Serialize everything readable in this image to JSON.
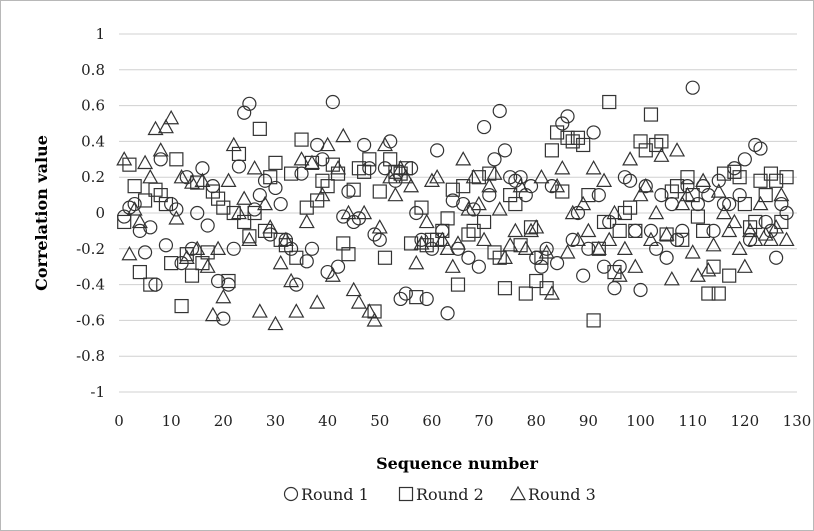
{
  "chart_data": {
    "type": "scatter",
    "xlabel": "Sequence number",
    "ylabel": "Correlation value",
    "xlim": [
      0,
      130
    ],
    "ylim": [
      -1,
      1
    ],
    "x_ticks": [
      0,
      10,
      20,
      30,
      40,
      50,
      60,
      70,
      80,
      90,
      100,
      110,
      120,
      130
    ],
    "y_ticks": [
      1,
      0.8,
      0.6,
      0.4,
      0.2,
      0,
      -0.2,
      -0.4,
      -0.6,
      -0.8,
      -1
    ],
    "y_tick_labels": [
      "1",
      "0.8",
      "0.6",
      "0.4",
      "0.2",
      "0",
      "-0.2",
      "-0.4",
      "-0.6",
      "-0.8",
      "-1"
    ],
    "grid": "horizontal",
    "legend_position": "bottom",
    "series": [
      {
        "name": "Round 1",
        "marker": "circle",
        "x": [
          1,
          2,
          3,
          4,
          5,
          6,
          7,
          8,
          9,
          10,
          11,
          12,
          13,
          14,
          15,
          16,
          17,
          18,
          19,
          20,
          21,
          22,
          23,
          24,
          25,
          26,
          27,
          28,
          29,
          30,
          31,
          32,
          33,
          34,
          35,
          36,
          37,
          38,
          39,
          40,
          41,
          42,
          43,
          44,
          45,
          46,
          47,
          48,
          49,
          50,
          51,
          52,
          53,
          54,
          55,
          56,
          57,
          58,
          59,
          60,
          61,
          62,
          63,
          64,
          65,
          66,
          67,
          68,
          69,
          70,
          71,
          72,
          73,
          74,
          75,
          76,
          77,
          78,
          79,
          80,
          81,
          82,
          83,
          84,
          85,
          86,
          87,
          88,
          89,
          90,
          91,
          92,
          93,
          94,
          95,
          96,
          97,
          98,
          99,
          100,
          101,
          102,
          103,
          104,
          105,
          106,
          107,
          108,
          109,
          110,
          111,
          112,
          113,
          114,
          115,
          116,
          117,
          118,
          119,
          120,
          121,
          122,
          123,
          124,
          125,
          126,
          127,
          128
        ],
        "y": [
          -0.02,
          0.03,
          0.05,
          -0.1,
          -0.22,
          -0.08,
          -0.4,
          0.3,
          -0.18,
          0.05,
          0.02,
          -0.28,
          0.2,
          -0.2,
          0.0,
          0.25,
          -0.07,
          0.15,
          -0.38,
          -0.59,
          -0.4,
          -0.2,
          0.26,
          0.56,
          0.61,
          0.02,
          0.1,
          0.18,
          -0.12,
          0.14,
          0.05,
          -0.15,
          -0.2,
          -0.4,
          0.22,
          -0.27,
          -0.2,
          0.38,
          0.3,
          -0.33,
          0.62,
          -0.3,
          -0.02,
          0.12,
          -0.05,
          -0.03,
          0.38,
          0.25,
          -0.12,
          -0.15,
          0.25,
          0.4,
          0.18,
          -0.48,
          -0.45,
          0.25,
          0.0,
          -0.15,
          -0.48,
          -0.2,
          0.35,
          -0.1,
          -0.56,
          0.07,
          -0.2,
          0.05,
          -0.25,
          0.02,
          -0.3,
          0.48,
          0.1,
          0.3,
          0.57,
          0.35,
          0.2,
          0.18,
          0.2,
          0.1,
          0.15,
          -0.25,
          -0.3,
          -0.2,
          0.15,
          -0.28,
          0.5,
          0.54,
          -0.15,
          0.0,
          -0.35,
          -0.2,
          0.45,
          0.1,
          -0.3,
          -0.05,
          -0.42,
          -0.3,
          0.2,
          0.18,
          -0.1,
          -0.43,
          0.15,
          -0.1,
          -0.2,
          0.1,
          -0.25,
          0.05,
          -0.15,
          -0.1,
          0.15,
          0.7,
          0.05,
          0.15,
          0.1,
          -0.1,
          0.18,
          0.05,
          0.05,
          0.25,
          0.1,
          0.3,
          -0.15,
          0.38,
          0.36,
          -0.05,
          -0.1,
          -0.25,
          0.05,
          0.0
        ],
        "y_note": ""
      },
      {
        "name": "Round 2",
        "marker": "square",
        "x": [
          1,
          2,
          3,
          4,
          5,
          6,
          7,
          8,
          9,
          10,
          11,
          12,
          13,
          14,
          15,
          16,
          17,
          18,
          19,
          20,
          21,
          22,
          23,
          24,
          25,
          26,
          27,
          28,
          29,
          30,
          31,
          32,
          33,
          34,
          35,
          36,
          37,
          38,
          39,
          40,
          41,
          42,
          43,
          44,
          45,
          46,
          47,
          48,
          49,
          50,
          51,
          52,
          53,
          54,
          55,
          56,
          57,
          58,
          59,
          60,
          61,
          62,
          63,
          64,
          65,
          66,
          67,
          68,
          69,
          70,
          71,
          72,
          73,
          74,
          75,
          76,
          77,
          78,
          79,
          80,
          81,
          82,
          83,
          84,
          85,
          86,
          87,
          88,
          89,
          90,
          91,
          92,
          93,
          94,
          95,
          96,
          97,
          98,
          99,
          100,
          101,
          102,
          103,
          104,
          105,
          106,
          107,
          108,
          109,
          110,
          111,
          112,
          113,
          114,
          115,
          116,
          117,
          118,
          119,
          120,
          121,
          122,
          123,
          124,
          125,
          126,
          127,
          128
        ],
        "y": [
          -0.05,
          0.27,
          0.15,
          -0.33,
          0.07,
          -0.4,
          0.13,
          0.1,
          0.05,
          -0.28,
          0.3,
          -0.52,
          -0.23,
          -0.35,
          0.17,
          -0.28,
          -0.22,
          0.12,
          0.08,
          0.03,
          -0.38,
          0.0,
          0.33,
          -0.05,
          -0.13,
          0.0,
          0.47,
          -0.1,
          0.2,
          0.28,
          -0.15,
          -0.18,
          0.22,
          -0.25,
          0.41,
          0.03,
          0.28,
          0.07,
          0.18,
          0.15,
          0.27,
          0.22,
          -0.17,
          -0.23,
          0.13,
          0.25,
          0.23,
          0.3,
          -0.55,
          0.12,
          -0.25,
          0.3,
          0.23,
          0.22,
          0.25,
          -0.17,
          -0.47,
          0.03,
          -0.18,
          -0.15,
          -0.15,
          -0.1,
          -0.03,
          0.13,
          -0.4,
          0.15,
          -0.12,
          -0.1,
          0.2,
          -0.05,
          0.22,
          -0.22,
          -0.25,
          -0.42,
          0.1,
          0.05,
          -0.18,
          -0.45,
          -0.08,
          -0.38,
          -0.25,
          -0.42,
          0.35,
          0.45,
          0.12,
          0.42,
          0.4,
          0.42,
          0.38,
          0.1,
          -0.6,
          -0.2,
          -0.05,
          0.62,
          -0.33,
          -0.1,
          0.0,
          0.03,
          -0.1,
          0.4,
          0.35,
          0.55,
          0.38,
          0.4,
          -0.12,
          0.12,
          0.15,
          -0.15,
          0.2,
          0.1,
          -0.02,
          -0.1,
          -0.45,
          -0.3,
          -0.45,
          0.22,
          -0.35,
          0.23,
          0.2,
          0.05,
          -0.08,
          -0.05,
          0.18,
          0.1,
          0.22,
          0.18,
          -0.05,
          0.2
        ]
      },
      {
        "name": "Round 3",
        "marker": "triangle",
        "x": [
          1,
          2,
          3,
          4,
          5,
          6,
          7,
          8,
          9,
          10,
          11,
          12,
          13,
          14,
          15,
          16,
          17,
          18,
          19,
          20,
          21,
          22,
          23,
          24,
          25,
          26,
          27,
          28,
          29,
          30,
          31,
          32,
          33,
          34,
          35,
          36,
          37,
          38,
          39,
          40,
          41,
          42,
          43,
          44,
          45,
          46,
          47,
          48,
          49,
          50,
          51,
          52,
          53,
          54,
          55,
          56,
          57,
          58,
          59,
          60,
          61,
          62,
          63,
          64,
          65,
          66,
          67,
          68,
          69,
          70,
          71,
          72,
          73,
          74,
          75,
          76,
          77,
          78,
          79,
          80,
          81,
          82,
          83,
          84,
          85,
          86,
          87,
          88,
          89,
          90,
          91,
          92,
          93,
          94,
          95,
          96,
          97,
          98,
          99,
          100,
          101,
          102,
          103,
          104,
          105,
          106,
          107,
          108,
          109,
          110,
          111,
          112,
          113,
          114,
          115,
          116,
          117,
          118,
          119,
          120,
          121,
          122,
          123,
          124,
          125,
          126,
          127,
          128
        ],
        "y": [
          0.3,
          -0.23,
          0.02,
          -0.05,
          0.28,
          0.2,
          0.47,
          0.35,
          0.48,
          0.53,
          -0.03,
          0.2,
          -0.25,
          0.17,
          -0.2,
          0.18,
          -0.3,
          -0.57,
          -0.2,
          -0.47,
          0.18,
          0.38,
          0.0,
          0.08,
          -0.15,
          0.25,
          -0.55,
          0.05,
          -0.08,
          -0.62,
          -0.28,
          -0.15,
          -0.38,
          -0.55,
          0.3,
          -0.05,
          0.28,
          -0.5,
          0.1,
          0.38,
          -0.35,
          0.25,
          0.43,
          0.0,
          -0.43,
          -0.5,
          0.0,
          -0.55,
          -0.6,
          -0.08,
          0.38,
          0.2,
          0.1,
          0.25,
          0.2,
          0.15,
          -0.28,
          -0.17,
          -0.05,
          0.18,
          0.2,
          -0.15,
          -0.2,
          -0.3,
          -0.17,
          0.3,
          0.02,
          0.2,
          0.05,
          -0.15,
          0.15,
          0.22,
          0.02,
          -0.25,
          -0.18,
          -0.1,
          0.15,
          -0.2,
          -0.1,
          -0.08,
          0.2,
          -0.22,
          -0.45,
          0.15,
          0.25,
          -0.22,
          0.0,
          -0.15,
          0.05,
          -0.1,
          0.25,
          -0.2,
          0.18,
          -0.15,
          0.0,
          -0.35,
          -0.2,
          0.3,
          -0.3,
          0.1,
          0.15,
          -0.15,
          0.0,
          0.32,
          -0.12,
          -0.37,
          0.35,
          0.05,
          0.1,
          -0.22,
          -0.35,
          0.18,
          -0.32,
          -0.18,
          0.12,
          0.0,
          -0.1,
          -0.05,
          -0.2,
          -0.3,
          -0.1,
          -0.15,
          0.05,
          -0.12,
          -0.15,
          -0.08,
          0.1,
          -0.15
        ]
      }
    ]
  }
}
